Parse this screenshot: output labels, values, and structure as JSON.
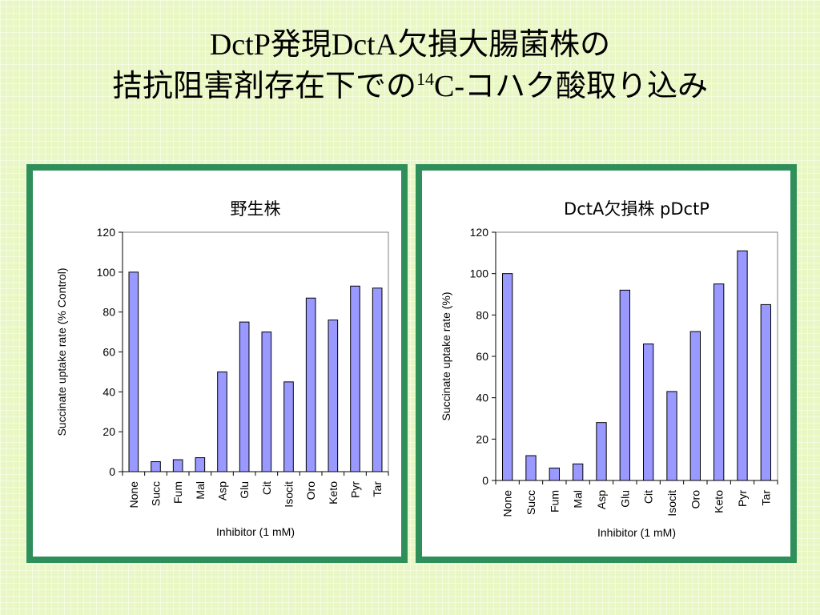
{
  "title": {
    "line1": "DctP発現DctA欠損大腸菌株の",
    "line2_pre": "拮抗阻害剤存在下での",
    "line2_sup": "14",
    "line2_post": "C-コハク酸取り込み"
  },
  "chart_data": [
    {
      "type": "bar",
      "title": "野生株",
      "categories": [
        "None",
        "Succ",
        "Fum",
        "Mal",
        "Asp",
        "Glu",
        "Cit",
        "Isocit",
        "Oro",
        "Keto",
        "Pyr",
        "Tar"
      ],
      "values": [
        100,
        5,
        6,
        7,
        50,
        75,
        70,
        45,
        87,
        76,
        93,
        92
      ],
      "xlabel": "Inhibitor (1 mM)",
      "ylabel": "Succinate uptake rate (% Control)",
      "ylim": [
        0,
        120
      ],
      "yticks": [
        0,
        20,
        40,
        60,
        80,
        100,
        120
      ],
      "bar_color": "#9999ff",
      "grid": false,
      "legend": "none"
    },
    {
      "type": "bar",
      "title": "DctA欠損株 pDctP",
      "categories": [
        "None",
        "Succ",
        "Fum",
        "Mal",
        "Asp",
        "Glu",
        "Cit",
        "Isocit",
        "Oro",
        "Keto",
        "Pyr",
        "Tar"
      ],
      "values": [
        100,
        12,
        6,
        8,
        28,
        92,
        66,
        43,
        72,
        95,
        111,
        85
      ],
      "xlabel": "Inhibitor (1 mM)",
      "ylabel": "Succinate uptake rate (%)",
      "ylim": [
        0,
        120
      ],
      "yticks": [
        0,
        20,
        40,
        60,
        80,
        100,
        120
      ],
      "bar_color": "#9999ff",
      "grid": false,
      "legend": "none"
    }
  ]
}
